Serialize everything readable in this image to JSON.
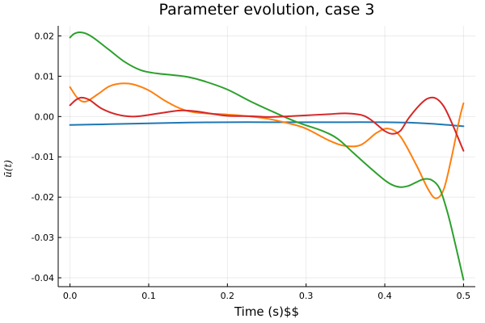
{
  "chart_data": {
    "type": "line",
    "title": "Parameter evolution, case 3",
    "xlabel": "Time (s)$$",
    "ylabel": "ū(t)",
    "xlim": [
      -0.015,
      0.515
    ],
    "ylim": [
      -0.0422,
      0.0225
    ],
    "xticks": [
      0.0,
      0.1,
      0.2,
      0.3,
      0.4,
      0.5
    ],
    "xtick_labels": [
      "0.0",
      "0.1",
      "0.2",
      "0.3",
      "0.4",
      "0.5"
    ],
    "yticks": [
      0.02,
      0.01,
      0.0,
      -0.01,
      -0.02,
      -0.03,
      -0.04
    ],
    "ytick_labels": [
      "0.02",
      "0.01",
      "0.00",
      "-0.01",
      "-0.02",
      "-0.03",
      "-0.04"
    ],
    "grid": true,
    "legend": "none",
    "series": [
      {
        "color": "#1f77b4",
        "points": [
          [
            0.0,
            -0.0021
          ],
          [
            0.05,
            -0.0019
          ],
          [
            0.1,
            -0.0017
          ],
          [
            0.15,
            -0.0015
          ],
          [
            0.2,
            -0.0014
          ],
          [
            0.25,
            -0.0014
          ],
          [
            0.3,
            -0.0014
          ],
          [
            0.35,
            -0.0014
          ],
          [
            0.4,
            -0.0014
          ],
          [
            0.43,
            -0.0015
          ],
          [
            0.46,
            -0.0018
          ],
          [
            0.5,
            -0.0024
          ]
        ]
      },
      {
        "color": "#ff7f0e",
        "points": [
          [
            0.0,
            0.0073
          ],
          [
            0.01,
            0.0045
          ],
          [
            0.02,
            0.0037
          ],
          [
            0.035,
            0.0055
          ],
          [
            0.05,
            0.0075
          ],
          [
            0.065,
            0.0082
          ],
          [
            0.08,
            0.008
          ],
          [
            0.1,
            0.0065
          ],
          [
            0.12,
            0.004
          ],
          [
            0.14,
            0.002
          ],
          [
            0.16,
            0.001
          ],
          [
            0.2,
            0.0005
          ],
          [
            0.22,
            0.0002
          ],
          [
            0.25,
            -0.0005
          ],
          [
            0.28,
            -0.0018
          ],
          [
            0.3,
            -0.003
          ],
          [
            0.33,
            -0.006
          ],
          [
            0.35,
            -0.0073
          ],
          [
            0.37,
            -0.007
          ],
          [
            0.39,
            -0.004
          ],
          [
            0.405,
            -0.003
          ],
          [
            0.42,
            -0.005
          ],
          [
            0.44,
            -0.012
          ],
          [
            0.455,
            -0.018
          ],
          [
            0.465,
            -0.0203
          ],
          [
            0.475,
            -0.018
          ],
          [
            0.485,
            -0.01
          ],
          [
            0.495,
            -0.0005
          ],
          [
            0.5,
            0.0033
          ]
        ]
      },
      {
        "color": "#2ca02c",
        "points": [
          [
            0.0,
            0.0196
          ],
          [
            0.005,
            0.0205
          ],
          [
            0.012,
            0.0209
          ],
          [
            0.02,
            0.0206
          ],
          [
            0.03,
            0.0195
          ],
          [
            0.05,
            0.0165
          ],
          [
            0.07,
            0.0135
          ],
          [
            0.09,
            0.0115
          ],
          [
            0.11,
            0.0107
          ],
          [
            0.13,
            0.0103
          ],
          [
            0.15,
            0.0098
          ],
          [
            0.17,
            0.0088
          ],
          [
            0.2,
            0.0067
          ],
          [
            0.23,
            0.0037
          ],
          [
            0.26,
            0.001
          ],
          [
            0.29,
            -0.0015
          ],
          [
            0.32,
            -0.0035
          ],
          [
            0.34,
            -0.0055
          ],
          [
            0.36,
            -0.009
          ],
          [
            0.38,
            -0.0125
          ],
          [
            0.4,
            -0.0158
          ],
          [
            0.41,
            -0.017
          ],
          [
            0.42,
            -0.0175
          ],
          [
            0.43,
            -0.0172
          ],
          [
            0.44,
            -0.0163
          ],
          [
            0.45,
            -0.0155
          ],
          [
            0.46,
            -0.0158
          ],
          [
            0.47,
            -0.018
          ],
          [
            0.48,
            -0.024
          ],
          [
            0.49,
            -0.032
          ],
          [
            0.5,
            -0.0405
          ]
        ]
      },
      {
        "color": "#d62728",
        "points": [
          [
            0.0,
            0.0028
          ],
          [
            0.008,
            0.0042
          ],
          [
            0.015,
            0.0047
          ],
          [
            0.025,
            0.0041
          ],
          [
            0.04,
            0.002
          ],
          [
            0.06,
            0.0005
          ],
          [
            0.08,
            0.0
          ],
          [
            0.1,
            0.0004
          ],
          [
            0.12,
            0.001
          ],
          [
            0.14,
            0.0015
          ],
          [
            0.16,
            0.0013
          ],
          [
            0.18,
            0.0007
          ],
          [
            0.2,
            0.0002
          ],
          [
            0.23,
            0.0001
          ],
          [
            0.25,
            -0.0001
          ],
          [
            0.27,
            0.0
          ],
          [
            0.3,
            0.0003
          ],
          [
            0.33,
            0.0006
          ],
          [
            0.35,
            0.0008
          ],
          [
            0.37,
            0.0004
          ],
          [
            0.38,
            -0.0005
          ],
          [
            0.39,
            -0.002
          ],
          [
            0.4,
            -0.0036
          ],
          [
            0.41,
            -0.0043
          ],
          [
            0.42,
            -0.0035
          ],
          [
            0.43,
            -0.0005
          ],
          [
            0.445,
            0.003
          ],
          [
            0.455,
            0.0045
          ],
          [
            0.465,
            0.0045
          ],
          [
            0.475,
            0.0025
          ],
          [
            0.485,
            -0.0015
          ],
          [
            0.5,
            -0.0085
          ]
        ]
      }
    ]
  }
}
